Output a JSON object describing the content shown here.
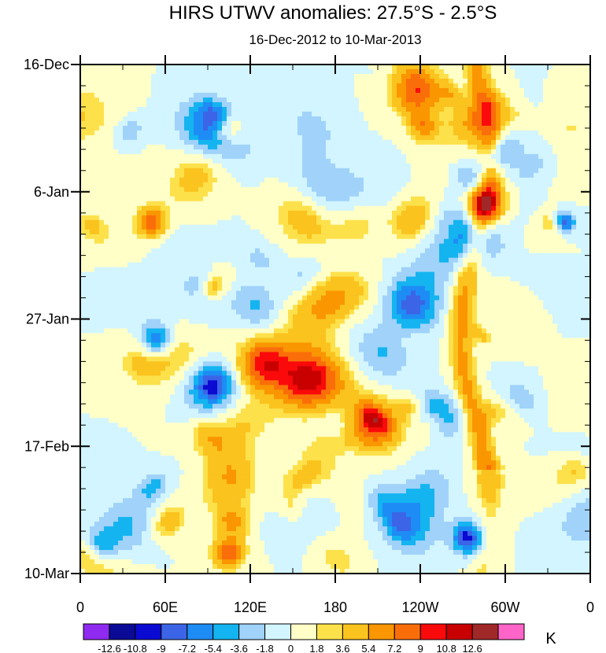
{
  "chart_data": {
    "type": "heatmap",
    "title": "HIRS UTWV anomalies: 27.5°S - 2.5°S",
    "subtitle": "16-Dec-2012 to 10-Mar-2013",
    "x_ticks": [
      "0",
      "60E",
      "120E",
      "180",
      "120W",
      "60W",
      "0"
    ],
    "x_range_deg_east": [
      0,
      360
    ],
    "y_ticks": [
      "16-Dec",
      "6-Jan",
      "27-Jan",
      "17-Feb",
      "10-Mar"
    ],
    "y_range_days": [
      0,
      84
    ],
    "units": "K",
    "contour_levels": [
      "-12.6",
      "-10.8",
      "-9",
      "-7.2",
      "-5.4",
      "-3.6",
      "-1.8",
      "0",
      "1.8",
      "3.6",
      "5.4",
      "7.2",
      "9",
      "10.8",
      "12.6"
    ],
    "colorbar_colors": [
      "#8f2af0",
      "#0a0a96",
      "#0a0ad2",
      "#3c64e6",
      "#1e8cf5",
      "#14b4f0",
      "#a0d2fa",
      "#d2f5ff",
      "#ffffc8",
      "#fde14b",
      "#fac31e",
      "#fa9600",
      "#fa6e0a",
      "#fa0a0a",
      "#c80000",
      "#a02828",
      "#ff64c8"
    ],
    "features": [
      {
        "name": "Strong positive anomaly along ~75W propagating downward",
        "sign": "positive"
      },
      {
        "name": "Large positive anomaly near 160E-150W in mid-February",
        "sign": "positive"
      },
      {
        "name": "Negative anomaly near 90W-60W late January",
        "sign": "negative"
      },
      {
        "name": "Negative anomaly near 75W early March",
        "sign": "negative"
      }
    ]
  }
}
